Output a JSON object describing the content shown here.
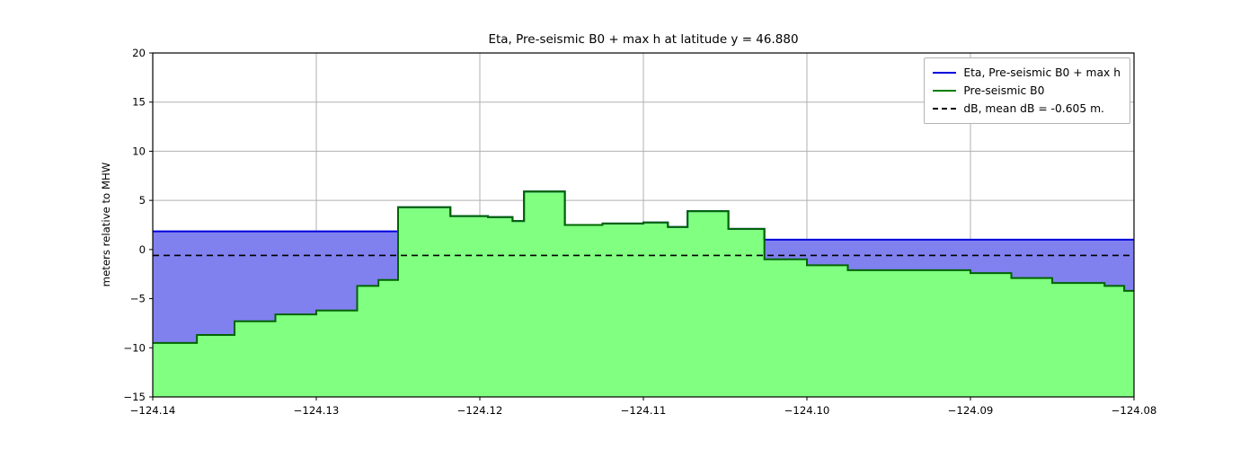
{
  "chart_data": {
    "type": "area",
    "title": "Eta, Pre-seismic B0 + max h at latitude y = 46.880",
    "xlabel": "",
    "ylabel": "meters relative to MHW",
    "xlim": [
      -124.14,
      -124.08
    ],
    "ylim": [
      -15,
      20
    ],
    "grid": true,
    "xticks": [
      -124.14,
      -124.13,
      -124.12,
      -124.11,
      -124.1,
      -124.09,
      -124.08
    ],
    "xtick_labels": [
      "−124.14",
      "−124.13",
      "−124.12",
      "−124.11",
      "−124.10",
      "−124.09",
      "−124.08"
    ],
    "yticks": [
      -15,
      -10,
      -5,
      0,
      5,
      10,
      15,
      20
    ],
    "ytick_labels": [
      "−15",
      "−10",
      "−5",
      "0",
      "5",
      "10",
      "15",
      "20"
    ],
    "colors": {
      "eta_line": "#0000dd",
      "eta_fill": "#8080ef",
      "b0_line": "#006400",
      "b0_fill": "#80ff80",
      "db_line": "#000000",
      "grid": "#b0b0b0",
      "spine": "#000000"
    },
    "eta": {
      "label": "Eta, Pre-seismic B0 + max h",
      "regions": [
        {
          "x0": -124.14,
          "x1": -124.125,
          "value": 1.85
        },
        {
          "x0": -124.1026,
          "x1": -124.08,
          "value": 1.0
        }
      ]
    },
    "b0": {
      "label": "Pre-seismic B0",
      "x_end": -124.08,
      "steps": [
        {
          "x": -124.14,
          "v": -9.5
        },
        {
          "x": -124.1373,
          "v": -8.7
        },
        {
          "x": -124.135,
          "v": -7.3
        },
        {
          "x": -124.1325,
          "v": -6.6
        },
        {
          "x": -124.13,
          "v": -6.2
        },
        {
          "x": -124.1275,
          "v": -3.7
        },
        {
          "x": -124.1262,
          "v": -3.1
        },
        {
          "x": -124.125,
          "v": 4.3
        },
        {
          "x": -124.1218,
          "v": 3.4
        },
        {
          "x": -124.1195,
          "v": 3.3
        },
        {
          "x": -124.118,
          "v": 2.9
        },
        {
          "x": -124.1173,
          "v": 5.9
        },
        {
          "x": -124.1148,
          "v": 2.5
        },
        {
          "x": -124.1125,
          "v": 2.65
        },
        {
          "x": -124.11,
          "v": 2.75
        },
        {
          "x": -124.1085,
          "v": 2.3
        },
        {
          "x": -124.1073,
          "v": 3.9
        },
        {
          "x": -124.1048,
          "v": 2.1
        },
        {
          "x": -124.1026,
          "v": -1.0
        },
        {
          "x": -124.1,
          "v": -1.6
        },
        {
          "x": -124.0975,
          "v": -2.1
        },
        {
          "x": -124.09,
          "v": -2.4
        },
        {
          "x": -124.0875,
          "v": -2.9
        },
        {
          "x": -124.085,
          "v": -3.4
        },
        {
          "x": -124.0818,
          "v": -3.7
        },
        {
          "x": -124.0806,
          "v": -4.2
        }
      ]
    },
    "db": {
      "label": "dB, mean dB = -0.605 m.",
      "value": -0.605
    },
    "legend": {
      "position": "upper right",
      "entries": [
        {
          "label": "Eta, Pre-seismic B0 + max h",
          "color": "#0000dd",
          "dash": false
        },
        {
          "label": "Pre-seismic B0",
          "color": "#007d00",
          "dash": false
        },
        {
          "label": "dB, mean dB = -0.605 m.",
          "color": "#000000",
          "dash": true
        }
      ]
    }
  }
}
